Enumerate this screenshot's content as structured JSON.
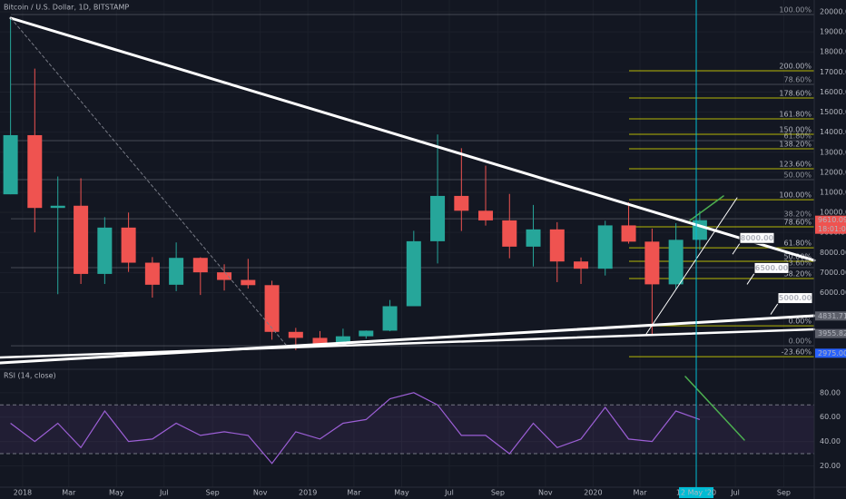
{
  "chart_data": [
    {
      "type": "candlestick",
      "title": "Bitcoin / U.S. Dollar, 1D, BITSTAMP",
      "grid": true,
      "up_color": "#26a69a",
      "down_color": "#ef5350",
      "x": [
        "2017-12",
        "2018-01",
        "2018-02",
        "2018-03",
        "2018-04",
        "2018-05",
        "2018-06",
        "2018-07",
        "2018-08",
        "2018-09",
        "2018-10",
        "2018-11",
        "2018-12",
        "2019-01",
        "2019-02",
        "2019-03",
        "2019-04",
        "2019-05",
        "2019-06",
        "2019-07",
        "2019-08",
        "2019-09",
        "2019-10",
        "2019-11",
        "2019-12",
        "2020-01",
        "2020-02",
        "2020-03",
        "2020-04",
        "2020-05"
      ],
      "open": [
        10900,
        13850,
        10220,
        10330,
        6930,
        9240,
        7490,
        6390,
        7730,
        7010,
        6630,
        6370,
        4040,
        3740,
        3460,
        3820,
        4100,
        5320,
        8560,
        10820,
        10080,
        9600,
        8290,
        9150,
        7550,
        7190,
        9350,
        8540,
        6410,
        8630
      ],
      "high": [
        19666,
        17170,
        11790,
        11700,
        9760,
        9990,
        7770,
        8500,
        7760,
        7410,
        7680,
        6590,
        4240,
        4080,
        4200,
        4110,
        5630,
        9080,
        13880,
        13200,
        12330,
        10920,
        10370,
        9510,
        7750,
        9580,
        10500,
        9190,
        9460,
        10070
      ],
      "low": [
        10900,
        9000,
        5920,
        6430,
        6430,
        7030,
        5750,
        6070,
        5880,
        6100,
        6200,
        3650,
        3130,
        3350,
        3390,
        3700,
        4070,
        5330,
        7450,
        9070,
        9340,
        7710,
        7300,
        6520,
        6430,
        6850,
        8440,
        3850,
        6150,
        8120
      ],
      "close": [
        13850,
        10220,
        10330,
        6930,
        9240,
        7490,
        6390,
        7730,
        7010,
        6630,
        6370,
        4040,
        3740,
        3460,
        3820,
        4100,
        5320,
        8560,
        10820,
        10080,
        9600,
        8290,
        9150,
        7550,
        7190,
        9350,
        8540,
        6410,
        8630,
        9610
      ],
      "xlim": [
        "2017-12-03",
        "2020-10-10"
      ],
      "xticks": [
        {
          "value": "2018-01",
          "label": "2018"
        },
        {
          "value": "2018-03",
          "label": "Mar"
        },
        {
          "value": "2018-05",
          "label": "May"
        },
        {
          "value": "2018-07",
          "label": "Jul"
        },
        {
          "value": "2018-09",
          "label": "Sep"
        },
        {
          "value": "2018-11",
          "label": "Nov"
        },
        {
          "value": "2019-01",
          "label": "2019"
        },
        {
          "value": "2019-03",
          "label": "Mar"
        },
        {
          "value": "2019-05",
          "label": "May"
        },
        {
          "value": "2019-07",
          "label": "Jul"
        },
        {
          "value": "2019-09",
          "label": "Sep"
        },
        {
          "value": "2019-11",
          "label": "Nov"
        },
        {
          "value": "2020-01",
          "label": "2020"
        },
        {
          "value": "2020-03",
          "label": "Mar"
        },
        {
          "value": "2020-07",
          "label": "Jul"
        },
        {
          "value": "2020-09",
          "label": "Sep"
        }
      ],
      "crosshair": {
        "value": "2020-05-12",
        "label": "12 May '20"
      },
      "ylim": [
        2130,
        20590
      ],
      "yticks": [
        {
          "value": 20000,
          "label": "20000.00"
        },
        {
          "value": 19000,
          "label": "19000.00"
        },
        {
          "value": 18000,
          "label": "18000.00"
        },
        {
          "value": 17000,
          "label": "17000.00"
        },
        {
          "value": 16000,
          "label": "16000.00"
        },
        {
          "value": 15000,
          "label": "15000.00"
        },
        {
          "value": 14000,
          "label": "14000.00"
        },
        {
          "value": 13000,
          "label": "13000.00"
        },
        {
          "value": 12000,
          "label": "12000.00"
        },
        {
          "value": 11000,
          "label": "11000.00"
        },
        {
          "value": 10000,
          "label": "10000.00"
        },
        {
          "value": 9000,
          "label": "9000.00"
        },
        {
          "value": 8000,
          "label": "8000.00"
        },
        {
          "value": 7000,
          "label": "7000.00"
        },
        {
          "value": 6000,
          "label": "6000.00"
        }
      ],
      "fib_levels": [
        {
          "label": "100.00%",
          "price": 19864,
          "color": "#787b86"
        },
        {
          "label": "200.00%",
          "price": 17059,
          "color": "#e0e000"
        },
        {
          "label": "78.60%",
          "price": 16380,
          "color": "#787b86"
        },
        {
          "label": "178.60%",
          "price": 15701,
          "color": "#e0e000"
        },
        {
          "label": "161.80%",
          "price": 14661,
          "color": "#e0e000"
        },
        {
          "label": "150.00%",
          "price": 13891,
          "color": "#e0e000"
        },
        {
          "label": "61.80%",
          "price": 13575,
          "color": "#787b86"
        },
        {
          "label": "138.20%",
          "price": 13167,
          "color": "#e0e000"
        },
        {
          "label": "123.60%",
          "price": 12172,
          "color": "#e0e000"
        },
        {
          "label": "50.00%",
          "price": 11629,
          "color": "#787b86"
        },
        {
          "label": "100.00%",
          "price": 10633,
          "color": "#e0e000"
        },
        {
          "label": "38.20%",
          "price": 9683,
          "color": "#787b86"
        },
        {
          "label": "78.60%",
          "price": 9276,
          "color": "#e0e000"
        },
        {
          "label": "61.80%",
          "price": 8235,
          "color": "#e0e000"
        },
        {
          "label": "50.00%",
          "price": 7557,
          "color": "#e0e000"
        },
        {
          "label": "23.60%",
          "price": 7240,
          "color": "#787b86"
        },
        {
          "label": "38.20%",
          "price": 6697,
          "color": "#e0e000"
        },
        {
          "label": "0.00%",
          "price": 4344,
          "color": "#e0e000"
        },
        {
          "label": "0.00%",
          "price": 3348,
          "color": "#787b86"
        },
        {
          "label": "-23.60%",
          "price": 2805,
          "color": "#e0e000"
        }
      ],
      "price_tags": [
        {
          "value": 9610.09,
          "countdown": "18:01:01",
          "color": "#ef5350"
        },
        {
          "value": 4831.71,
          "color": "#5d606b"
        },
        {
          "value": 3955.82,
          "color": "#5d606b"
        },
        {
          "value": 2975,
          "label": "2975.00",
          "color": "#2962ff"
        }
      ],
      "callouts": [
        {
          "value": 8000,
          "label": "8000.00"
        },
        {
          "value": 6500,
          "label": "6500.00"
        },
        {
          "value": 5000,
          "label": "5000.00"
        }
      ]
    },
    {
      "type": "line",
      "title": "RSI (14, close)",
      "color": "#9c5fd6",
      "x": [
        "2017-12",
        "2018-01",
        "2018-02",
        "2018-03",
        "2018-04",
        "2018-05",
        "2018-06",
        "2018-07",
        "2018-08",
        "2018-09",
        "2018-10",
        "2018-11",
        "2018-12",
        "2019-01",
        "2019-02",
        "2019-03",
        "2019-04",
        "2019-05",
        "2019-06",
        "2019-07",
        "2019-08",
        "2019-09",
        "2019-10",
        "2019-11",
        "2019-12",
        "2020-01",
        "2020-02",
        "2020-03",
        "2020-04",
        "2020-05"
      ],
      "values": [
        55,
        40,
        55,
        35,
        65,
        40,
        42,
        55,
        45,
        48,
        45,
        22,
        48,
        42,
        55,
        58,
        75,
        80,
        70,
        45,
        45,
        30,
        55,
        35,
        42,
        68,
        42,
        40,
        65,
        58
      ],
      "ylim": [
        4,
        97
      ],
      "band": [
        30,
        70
      ],
      "yticks": [
        {
          "value": 80,
          "label": "80.00"
        },
        {
          "value": 60,
          "label": "60.00"
        },
        {
          "value": 40,
          "label": "40.00"
        },
        {
          "value": 20,
          "label": "20.00"
        }
      ]
    }
  ]
}
